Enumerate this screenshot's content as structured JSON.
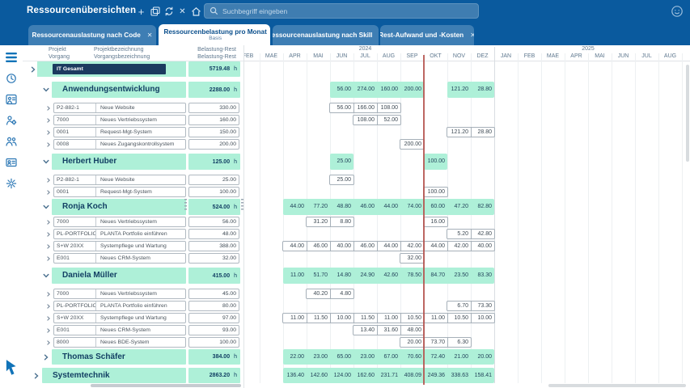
{
  "topbar": {
    "title": "Ressourcenübersichten",
    "search": {
      "placeholder": "Suchbegriff eingeben"
    }
  },
  "tabs": [
    {
      "label": "Ressourcenauslastung nach Code",
      "active": false
    },
    {
      "label": "Ressourcenbelastung pro Monat",
      "subtitle": "Basis",
      "active": true
    },
    {
      "label": "Ressourcenauslastung nach Skill",
      "active": false
    },
    {
      "label": "Rest-Aufwand und -Kosten",
      "active": false
    }
  ],
  "sidebar": {
    "icons": [
      {
        "name": "menu-icon",
        "active": true
      },
      {
        "name": "history-icon",
        "active": false
      },
      {
        "name": "resources-icon",
        "active": false
      },
      {
        "name": "user-settings-icon",
        "active": false
      },
      {
        "name": "team-icon",
        "active": false
      },
      {
        "name": "id-card-icon",
        "active": false
      },
      {
        "name": "settings-icon",
        "active": false
      }
    ]
  },
  "panel_header": {
    "col1_row1": "Projekt",
    "col1_row2": "Vorgang",
    "col2_row1": "Projektbezeichnung",
    "col2_row2": "Vorgangsbezeichnung",
    "col3_row1": "Belastung-Rest",
    "col3_row2": "Belastung-Rest"
  },
  "timeline": {
    "months": [
      "FEB",
      "MAE",
      "APR",
      "MAI",
      "JUN",
      "JUL",
      "AUG",
      "SEP",
      "OKT",
      "NOV",
      "DEZ",
      "JAN",
      "FEB",
      "MAE",
      "APR",
      "MAI",
      "JUN",
      "JUL",
      "AUG"
    ],
    "years": [
      {
        "label": "2024",
        "span": [
          0,
          11
        ]
      },
      {
        "label": "2025",
        "span": [
          11,
          19
        ]
      }
    ],
    "today_boundary_index": 8
  },
  "rows": [
    {
      "kind": "total",
      "label": "IT Gesamt",
      "value": "5719.48",
      "unit": "h",
      "expanded": false,
      "cells": {}
    },
    {
      "kind": "group",
      "level": 1,
      "label": "Anwendungsentwicklung",
      "value": "2288.00",
      "unit": "h",
      "expanded": true,
      "cells": {
        "4": "56.00",
        "5": "274.00",
        "6": "160.00",
        "7": "200.00",
        "9": "121.20",
        "10": "28.80"
      }
    },
    {
      "kind": "detail",
      "code": "P2-882-1",
      "desc": "Neue Website",
      "value": "330.00",
      "cells": {
        "4": "56.00",
        "5": "166.00",
        "6": "108.00"
      }
    },
    {
      "kind": "detail",
      "code": "7000",
      "desc": "Neues Vertriebssystem",
      "value": "160.00",
      "cells": {
        "5": "108.00",
        "6": "52.00"
      }
    },
    {
      "kind": "detail",
      "code": "0001",
      "desc": "Request-Mgt-System",
      "value": "150.00",
      "cells": {
        "9": "121.20",
        "10": "28.80"
      }
    },
    {
      "kind": "detail",
      "code": "0008",
      "desc": "Neues Zugangskontrollsystem",
      "value": "200.00",
      "cells": {
        "7": "200.00"
      }
    },
    {
      "kind": "group",
      "level": 2,
      "label": "Herbert Huber",
      "value": "125.00",
      "unit": "h",
      "expanded": true,
      "cells": {
        "4": "25.00",
        "8": "100.00"
      }
    },
    {
      "kind": "detail",
      "code": "P2-882-1",
      "desc": "Neue Website",
      "value": "25.00",
      "cells": {
        "4": "25.00"
      }
    },
    {
      "kind": "detail",
      "code": "0001",
      "desc": "Request-Mgt-System",
      "value": "100.00",
      "cells": {
        "8": "100.00"
      }
    },
    {
      "kind": "group",
      "level": 2,
      "label": "Ronja Koch",
      "value": "524.00",
      "unit": "h",
      "expanded": true,
      "cells": {
        "2": "44.00",
        "3": "77.20",
        "4": "48.80",
        "5": "46.00",
        "6": "44.00",
        "7": "74.00",
        "8": "60.00",
        "9": "47.20",
        "10": "82.80"
      }
    },
    {
      "kind": "detail",
      "code": "7000",
      "desc": "Neues Vertriebssystem",
      "value": "56.00",
      "cells": {
        "3": "31.20",
        "4": "8.80",
        "8": "16.00"
      }
    },
    {
      "kind": "detail",
      "code": "PL-PORTFOLIO",
      "desc": "PLANTA Portfolio einführen",
      "value": "48.00",
      "cells": {
        "9": "5.20",
        "10": "42.80"
      }
    },
    {
      "kind": "detail",
      "code": "S+W 20XX",
      "desc": "Systempflege und Wartung",
      "value": "388.00",
      "cells": {
        "2": "44.00",
        "3": "46.00",
        "4": "40.00",
        "5": "46.00",
        "6": "44.00",
        "7": "42.00",
        "8": "44.00",
        "9": "42.00",
        "10": "40.00"
      }
    },
    {
      "kind": "detail",
      "code": "E001",
      "desc": "Neues CRM-System",
      "value": "32.00",
      "cells": {
        "7": "32.00"
      }
    },
    {
      "kind": "group",
      "level": 2,
      "label": "Daniela Müller",
      "value": "415.00",
      "unit": "h",
      "expanded": true,
      "cells": {
        "2": "11.00",
        "3": "51.70",
        "4": "14.80",
        "5": "24.90",
        "6": "42.60",
        "7": "78.50",
        "8": "84.70",
        "9": "23.50",
        "10": "83.30"
      }
    },
    {
      "kind": "detail",
      "code": "7000",
      "desc": "Neues Vertriebssystem",
      "value": "45.00",
      "cells": {
        "3": "40.20",
        "4": "4.80"
      }
    },
    {
      "kind": "detail",
      "code": "PL-PORTFOLIO",
      "desc": "PLANTA Portfolio einführen",
      "value": "80.00",
      "cells": {
        "9": "6.70",
        "10": "73.30"
      }
    },
    {
      "kind": "detail",
      "code": "S+W 20XX",
      "desc": "Systempflege und Wartung",
      "value": "97.00",
      "cells": {
        "2": "11.00",
        "3": "11.50",
        "4": "10.00",
        "5": "11.50",
        "6": "11.00",
        "7": "10.50",
        "8": "11.00",
        "9": "10.50",
        "10": "10.00"
      }
    },
    {
      "kind": "detail",
      "code": "E001",
      "desc": "Neues CRM-System",
      "value": "93.00",
      "cells": {
        "5": "13.40",
        "6": "31.60",
        "7": "48.00"
      }
    },
    {
      "kind": "detail",
      "code": "8000",
      "desc": "Neues BDE-System",
      "value": "100.00",
      "cells": {
        "7": "20.00",
        "8": "73.70",
        "9": "6.30"
      }
    },
    {
      "kind": "group",
      "level": 2,
      "label": "Thomas Schäfer",
      "value": "384.00",
      "unit": "h",
      "expanded": false,
      "cells": {
        "2": "22.00",
        "3": "23.00",
        "4": "65.00",
        "5": "23.00",
        "6": "67.00",
        "7": "70.60",
        "8": "72.40",
        "9": "21.00",
        "10": "20.00"
      }
    },
    {
      "kind": "group",
      "level": 1,
      "label": "Systemtechnik",
      "value": "2863.20",
      "unit": "h",
      "expanded": false,
      "cells": {
        "2": "136.40",
        "3": "142.60",
        "4": "124.00",
        "5": "162.60",
        "6": "231.71",
        "7": "408.09",
        "8": "249.36",
        "9": "338.63",
        "10": "158.41"
      }
    }
  ],
  "colors": {
    "brand_blue": "#0a5a9e",
    "tab_blue": "#3e7eb4",
    "mint_green": "#aef0d8",
    "dark_navy_box": "#1b3a5f",
    "today_line_red": "#b5524d"
  }
}
